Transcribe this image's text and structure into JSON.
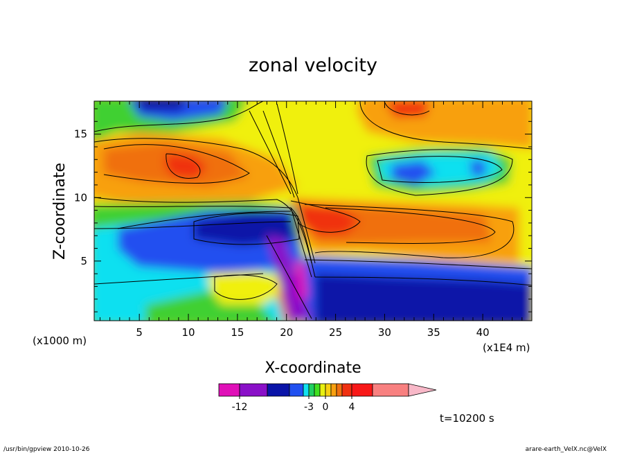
{
  "chart_data": {
    "type": "heatmap",
    "title": "zonal velocity",
    "xlabel": "X-coordinate",
    "ylabel": "Z-coordinate",
    "x_ticks": [
      5,
      10,
      15,
      20,
      25,
      30,
      35,
      40
    ],
    "y_ticks": [
      5,
      10,
      15
    ],
    "xlim": [
      0.4,
      45.0
    ],
    "ylim": [
      0.3,
      17.6
    ],
    "x_unit": "(x1E4 m)",
    "y_unit": "(x1000 m)",
    "colorbar": {
      "levels": [
        -15,
        -12,
        -9,
        -6,
        -4,
        -3,
        -2,
        -1,
        0,
        1,
        2,
        3,
        4,
        6,
        8
      ],
      "colors": [
        "#e010b8",
        "#8a10c8",
        "#0a14a8",
        "#2050f0",
        "#10e0f0",
        "#20d060",
        "#40e020",
        "#e8f010",
        "#f8d010",
        "#f8a010",
        "#f07010",
        "#f03010",
        "#f81818",
        "#f88080"
      ],
      "extend_color": "#f8b8c8",
      "tick_labels": [
        "-12",
        "-3",
        "0",
        "4"
      ]
    },
    "time_label": "t=10200 s",
    "footer_left": "/usr/bin/gpview   2010-10-26",
    "footer_right": "arare-earth_VelX.nc@VelX"
  }
}
